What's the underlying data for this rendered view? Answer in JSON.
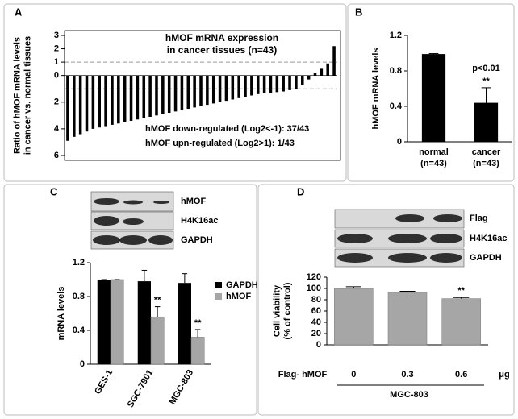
{
  "chart_data": [
    {
      "panel": "A",
      "type": "bar",
      "title": [
        "hMOF mRNA expression",
        "in cancer tissues (n=43)"
      ],
      "ylabel": [
        "Ratio of hMOF mRNA levels",
        "in cancer  vs. normal tissues"
      ],
      "values": [
        -4.9,
        -4.6,
        -4.4,
        -4.2,
        -4.0,
        -3.9,
        -3.8,
        -3.7,
        -3.6,
        -3.5,
        -3.4,
        -3.3,
        -3.2,
        -3.1,
        -3.0,
        -2.9,
        -2.8,
        -2.7,
        -2.6,
        -2.5,
        -2.4,
        -2.3,
        -2.2,
        -2.1,
        -2.0,
        -1.9,
        -1.8,
        -1.7,
        -1.6,
        -1.5,
        -1.4,
        -1.35,
        -1.3,
        -1.25,
        -1.2,
        -1.1,
        -1.05,
        -0.7,
        -0.3,
        0.2,
        0.5,
        0.9,
        2.2
      ],
      "color": "#000000",
      "ylim": [
        -6,
        3
      ],
      "yticks": [
        3,
        2,
        1,
        0,
        {
          "value": -2,
          "label": "2"
        },
        {
          "value": -4,
          "label": "4"
        },
        {
          "value": -6,
          "label": "6"
        }
      ],
      "reference_lines": [
        1,
        -1
      ],
      "notes": [
        "hMOF down-regulated (Log2<-1): 37/43",
        "hMOF upn-regulated (Log2>1): 1/43"
      ]
    },
    {
      "panel": "B",
      "type": "bar",
      "ylabel": [
        "hMOF mRNA levels"
      ],
      "categories": [
        "normal",
        "cancer"
      ],
      "category_notes": [
        "(n=43)",
        "(n=43)"
      ],
      "values": [
        0.99,
        0.44
      ],
      "errors": [
        0.005,
        0.17
      ],
      "color": "#000000",
      "ylim": [
        0,
        1.2
      ],
      "yticks": [
        0,
        0.4,
        0.8,
        1.2
      ],
      "annotations": [
        {
          "text": "**",
          "category": 1
        },
        {
          "text": "p<0.01",
          "category": 1
        }
      ]
    },
    {
      "panel": "C",
      "type": "bar",
      "blot_labels": [
        "hMOF",
        "H4K16ac",
        "GAPDH"
      ],
      "ylabel": [
        "mRNA levels"
      ],
      "categories": [
        "GES-1",
        "SGC-7901",
        "MGC-803"
      ],
      "series": [
        {
          "name": "GAPDH",
          "color": "#000000",
          "values": [
            1.0,
            0.98,
            0.96
          ],
          "errors": [
            0,
            0.13,
            0.11
          ]
        },
        {
          "name": "hMOF",
          "color": "#a6a6a6",
          "values": [
            1.0,
            0.56,
            0.32
          ],
          "errors": [
            0,
            0.12,
            0.09
          ]
        }
      ],
      "ylim": [
        0,
        1.2
      ],
      "yticks": [
        0,
        0.4,
        0.8,
        1.2
      ],
      "legend": "top-right",
      "annotations": [
        {
          "text": "**",
          "category": 1
        },
        {
          "text": "**",
          "category": 2
        }
      ]
    },
    {
      "panel": "D",
      "type": "bar",
      "blot_labels": [
        "Flag",
        "H4K16ac",
        "GAPDH"
      ],
      "ylabel": [
        "Cell viability",
        "(% of control)"
      ],
      "xlabel": "Flag- hMOF",
      "categories": [
        "0",
        "0.3",
        "0.6"
      ],
      "unit": "μg",
      "group": "MGC-803",
      "values": [
        100,
        93,
        82
      ],
      "errors": [
        3,
        2,
        2
      ],
      "color": "#a6a6a6",
      "ylim": [
        0,
        120
      ],
      "yticks": [
        0,
        20,
        40,
        60,
        80,
        100,
        120
      ],
      "annotations": [
        {
          "text": "**",
          "category": 2
        }
      ]
    }
  ]
}
